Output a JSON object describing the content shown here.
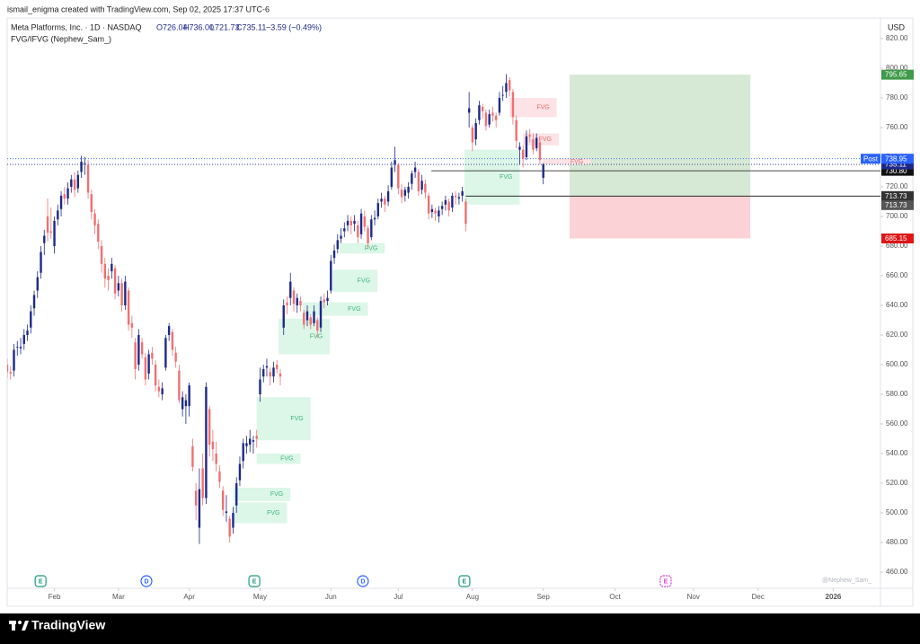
{
  "header": {
    "credit": "ismail_enigma created with TradingView.com, Sep 02, 2025 17:37 UTC-6"
  },
  "legend": {
    "symbol": "Meta Platforms, Inc. · 1D · NASDAQ",
    "open": "O726.04",
    "high": "H736.00",
    "low": "L721.73",
    "close": "C735.11",
    "change": "−3.59 (−0.49%)",
    "indicator": "FVG/IFVG (Nephew_Sam_)"
  },
  "footer": {
    "brand": "TradingView",
    "watermark": "@Nephew_Sam_"
  },
  "chart_data": {
    "type": "candlestick",
    "currency": "USD",
    "up_color": "#1e2a8a",
    "down_color": "#ef7070",
    "xlim": [
      0,
      259
    ],
    "ylim": [
      449.1,
      832.7
    ],
    "yticks": [
      {
        "value": 460,
        "label": "460.00"
      },
      {
        "value": 480,
        "label": "480.00"
      },
      {
        "value": 500,
        "label": "500.00"
      },
      {
        "value": 520,
        "label": "520.00"
      },
      {
        "value": 540,
        "label": "540.00"
      },
      {
        "value": 560,
        "label": "560.00"
      },
      {
        "value": 580,
        "label": "580.00"
      },
      {
        "value": 600,
        "label": "600.00"
      },
      {
        "value": 620,
        "label": "620.00"
      },
      {
        "value": 640,
        "label": "640.00"
      },
      {
        "value": 660,
        "label": "660.00"
      },
      {
        "value": 680,
        "label": "680.00"
      },
      {
        "value": 700,
        "label": "700.00"
      },
      {
        "value": 720,
        "label": "720.00"
      },
      {
        "value": 740,
        "label": "740.00"
      },
      {
        "value": 760,
        "label": "760.00"
      },
      {
        "value": 780,
        "label": "780.00"
      },
      {
        "value": 800,
        "label": "800.00"
      },
      {
        "value": 820,
        "label": "820.00"
      }
    ],
    "xticks": [
      {
        "value": 14,
        "label": "Feb"
      },
      {
        "value": 33,
        "label": "Mar"
      },
      {
        "value": 54,
        "label": "Apr"
      },
      {
        "value": 75,
        "label": "May"
      },
      {
        "value": 96,
        "label": "Jun"
      },
      {
        "value": 116,
        "label": "Jul"
      },
      {
        "value": 138,
        "label": "Aug"
      },
      {
        "value": 159,
        "label": "Sep"
      },
      {
        "value": 180.3,
        "label": "Oct"
      },
      {
        "value": 203.5,
        "label": "Nov"
      },
      {
        "value": 222.7,
        "label": "Dec"
      },
      {
        "value": 245,
        "label": "2026"
      }
    ],
    "ohlc": [
      [
        600,
        604,
        591,
        595
      ],
      [
        595,
        599,
        590,
        594
      ],
      [
        596,
        614,
        592,
        610
      ],
      [
        612,
        616,
        606,
        612
      ],
      [
        611,
        618,
        607,
        612
      ],
      [
        614,
        624,
        610,
        620
      ],
      [
        620,
        627,
        616,
        623
      ],
      [
        625,
        640,
        621,
        636
      ],
      [
        638,
        650,
        633,
        647
      ],
      [
        650,
        663,
        645,
        659
      ],
      [
        662,
        680,
        658,
        676
      ],
      [
        682,
        691,
        674,
        687
      ],
      [
        700,
        712,
        683,
        689
      ],
      [
        690,
        706,
        685,
        689
      ],
      [
        680,
        700,
        675,
        697
      ],
      [
        698,
        708,
        694,
        704
      ],
      [
        705,
        717,
        700,
        714
      ],
      [
        715,
        720,
        708,
        712
      ],
      [
        712,
        723,
        708,
        719
      ],
      [
        720,
        728,
        716,
        725
      ],
      [
        725,
        730,
        713,
        718
      ],
      [
        719,
        731,
        716,
        728
      ],
      [
        730,
        741,
        726,
        737
      ],
      [
        736,
        740,
        728,
        736
      ],
      [
        735,
        738,
        712,
        716
      ],
      [
        715,
        718,
        698,
        703
      ],
      [
        702,
        705,
        688,
        694
      ],
      [
        695,
        698,
        678,
        683
      ],
      [
        680,
        684,
        662,
        668
      ],
      [
        668,
        672,
        652,
        658
      ],
      [
        660,
        665,
        650,
        657
      ],
      [
        663,
        672,
        658,
        668
      ],
      [
        665,
        667,
        644,
        648
      ],
      [
        650,
        660,
        646,
        655
      ],
      [
        655,
        658,
        636,
        640
      ],
      [
        640,
        660,
        637,
        656
      ],
      [
        650,
        652,
        623,
        627
      ],
      [
        628,
        633,
        618,
        625
      ],
      [
        615,
        618,
        590,
        597
      ],
      [
        600,
        624,
        596,
        620
      ],
      [
        615,
        618,
        604,
        607
      ],
      [
        605,
        608,
        586,
        590
      ],
      [
        594,
        610,
        590,
        607
      ],
      [
        608,
        612,
        600,
        604
      ],
      [
        600,
        603,
        582,
        586
      ],
      [
        585,
        590,
        578,
        582
      ],
      [
        580,
        588,
        576,
        584
      ],
      [
        598,
        620,
        596,
        618
      ],
      [
        620,
        628,
        616,
        626
      ],
      [
        622,
        624,
        606,
        610
      ],
      [
        608,
        612,
        598,
        602
      ],
      [
        596,
        600,
        574,
        576
      ],
      [
        570,
        582,
        565,
        578
      ],
      [
        572,
        580,
        560,
        576
      ],
      [
        572,
        588,
        565,
        586
      ],
      [
        545,
        550,
        528,
        531
      ],
      [
        515,
        520,
        495,
        505
      ],
      [
        490,
        530,
        479,
        516
      ],
      [
        530,
        540,
        505,
        510
      ],
      [
        510,
        588,
        506,
        585
      ],
      [
        570,
        572,
        538,
        546
      ],
      [
        548,
        556,
        535,
        543
      ],
      [
        540,
        548,
        528,
        533
      ],
      [
        528,
        532,
        517,
        521
      ],
      [
        515,
        518,
        498,
        502
      ],
      [
        500,
        512,
        494,
        501
      ],
      [
        496,
        498,
        480,
        484
      ],
      [
        490,
        504,
        486,
        500
      ],
      [
        505,
        524,
        500,
        520
      ],
      [
        522,
        538,
        518,
        533
      ],
      [
        535,
        550,
        530,
        547
      ],
      [
        545,
        552,
        540,
        547
      ],
      [
        546,
        556,
        541,
        550
      ],
      [
        548,
        552,
        540,
        549
      ],
      [
        552,
        556,
        544,
        550
      ],
      [
        580,
        598,
        575,
        590
      ],
      [
        592,
        600,
        588,
        597
      ],
      [
        598,
        604,
        592,
        599
      ],
      [
        595,
        598,
        586,
        592
      ],
      [
        592,
        602,
        588,
        598
      ],
      [
        600,
        603,
        594,
        597
      ],
      [
        594,
        597,
        586,
        592
      ],
      [
        625,
        644,
        620,
        640
      ],
      [
        642,
        646,
        634,
        640
      ],
      [
        645,
        662,
        640,
        656
      ],
      [
        650,
        652,
        636,
        641
      ],
      [
        640,
        648,
        635,
        645
      ],
      [
        643,
        646,
        636,
        640
      ],
      [
        635,
        637,
        624,
        627
      ],
      [
        630,
        640,
        626,
        636
      ],
      [
        632,
        634,
        624,
        627
      ],
      [
        628,
        640,
        626,
        636
      ],
      [
        630,
        632,
        618,
        623
      ],
      [
        625,
        646,
        622,
        643
      ],
      [
        644,
        648,
        638,
        642
      ],
      [
        643,
        650,
        640,
        645
      ],
      [
        650,
        674,
        648,
        670
      ],
      [
        672,
        681,
        668,
        677
      ],
      [
        678,
        688,
        675,
        684
      ],
      [
        685,
        692,
        682,
        687
      ],
      [
        690,
        696,
        686,
        692
      ],
      [
        694,
        701,
        690,
        697
      ],
      [
        697,
        700,
        688,
        694
      ],
      [
        695,
        701,
        690,
        697
      ],
      [
        694,
        697,
        682,
        686
      ],
      [
        688,
        705,
        685,
        702
      ],
      [
        700,
        704,
        690,
        693
      ],
      [
        692,
        694,
        678,
        682
      ],
      [
        686,
        701,
        684,
        698
      ],
      [
        698,
        704,
        694,
        699
      ],
      [
        700,
        712,
        698,
        709
      ],
      [
        710,
        716,
        706,
        712
      ],
      [
        712,
        714,
        703,
        708
      ],
      [
        710,
        721,
        707,
        717
      ],
      [
        720,
        737,
        718,
        733
      ],
      [
        735,
        747,
        730,
        738
      ],
      [
        735,
        736,
        715,
        719
      ],
      [
        718,
        722,
        709,
        713
      ],
      [
        714,
        720,
        710,
        718
      ],
      [
        716,
        723,
        712,
        720
      ],
      [
        722,
        731,
        718,
        729
      ],
      [
        730,
        737,
        726,
        733
      ],
      [
        730,
        732,
        714,
        717
      ],
      [
        718,
        728,
        715,
        724
      ],
      [
        722,
        725,
        712,
        716
      ],
      [
        714,
        716,
        698,
        702
      ],
      [
        703,
        708,
        699,
        705
      ],
      [
        704,
        706,
        697,
        702
      ],
      [
        700,
        707,
        696,
        704
      ],
      [
        705,
        710,
        701,
        707
      ],
      [
        708,
        714,
        704,
        711
      ],
      [
        710,
        712,
        700,
        704
      ],
      [
        706,
        716,
        703,
        714
      ],
      [
        714,
        717,
        708,
        713
      ],
      [
        712,
        716,
        708,
        713
      ],
      [
        714,
        720,
        710,
        717
      ],
      [
        710,
        712,
        690,
        695
      ],
      [
        770,
        784,
        760,
        773
      ],
      [
        760,
        762,
        744,
        750
      ],
      [
        752,
        766,
        748,
        763
      ],
      [
        765,
        778,
        762,
        775
      ],
      [
        774,
        776,
        766,
        771
      ],
      [
        770,
        772,
        758,
        761
      ],
      [
        762,
        772,
        760,
        769
      ],
      [
        770,
        774,
        764,
        768
      ],
      [
        768,
        770,
        760,
        765
      ],
      [
        770,
        784,
        768,
        780
      ],
      [
        782,
        788,
        778,
        782
      ],
      [
        784,
        796,
        780,
        790
      ],
      [
        792,
        794,
        781,
        785
      ],
      [
        784,
        786,
        762,
        767
      ],
      [
        765,
        768,
        746,
        751
      ],
      [
        745,
        750,
        735,
        747
      ],
      [
        745,
        748,
        733,
        739
      ],
      [
        740,
        758,
        738,
        754
      ],
      [
        755,
        759,
        750,
        754
      ],
      [
        752,
        756,
        742,
        745
      ],
      [
        746,
        756,
        744,
        753
      ],
      [
        750,
        752,
        735,
        738
      ],
      [
        726.04,
        736,
        721.73,
        735.11
      ]
    ],
    "fvg": [
      {
        "label": "FVG",
        "kind": "bull",
        "x": [
          67,
          84
        ],
        "range": [
          508,
          517
        ]
      },
      {
        "label": "FVG",
        "kind": "bull",
        "x": [
          67,
          83
        ],
        "range": [
          493,
          507
        ]
      },
      {
        "label": "FVG",
        "kind": "bull",
        "x": [
          74,
          87
        ],
        "range": [
          533,
          540
        ]
      },
      {
        "label": "FVG",
        "kind": "bull",
        "x": [
          74,
          90
        ],
        "range": [
          549,
          578
        ]
      },
      {
        "label": "FVG",
        "kind": "bull",
        "x": [
          80.5,
          95.7
        ],
        "range": [
          607,
          631
        ]
      },
      {
        "label": "FVG",
        "kind": "bull",
        "x": [
          87.7,
          107
        ],
        "range": [
          633,
          642
        ]
      },
      {
        "label": "FVG",
        "kind": "bull",
        "x": [
          96.5,
          109.8
        ],
        "range": [
          649,
          664
        ]
      },
      {
        "label": "FVG",
        "kind": "bull",
        "x": [
          98.6,
          112
        ],
        "range": [
          675,
          682
        ]
      },
      {
        "label": "FVG",
        "kind": "bull",
        "x": [
          135.6,
          152
        ],
        "range": [
          708,
          745
        ]
      },
      {
        "label": "FVG",
        "kind": "bear",
        "x": [
          149,
          163
        ],
        "range": [
          767,
          780
        ]
      },
      {
        "label": "FVG",
        "kind": "bear",
        "x": [
          153,
          163.6
        ],
        "range": [
          748,
          756
        ]
      },
      {
        "label": "FVG",
        "kind": "bear",
        "x": [
          158.8,
          173
        ],
        "range": [
          735,
          739
        ]
      }
    ],
    "fvg_colors": {
      "bull": {
        "fill": "#dcf6e8",
        "text": "#3cb878"
      },
      "bear": {
        "fill": "#fde3e5",
        "text": "#e26d6d"
      }
    },
    "position": {
      "x": [
        166.8,
        220.4
      ],
      "target": 795.65,
      "entry": 713.73,
      "stop": 685.15,
      "profit_color": "#d6e9d5",
      "loss_color": "#fbd2d5",
      "target_color": "#3f9a4a",
      "entry_color": "#333333",
      "stop_color": "#e01515"
    },
    "price_lines": [
      {
        "value": 730.8,
        "label": "730.80",
        "from": 125.8,
        "color": "#111111",
        "style": "solid"
      },
      {
        "value": 713.73,
        "from": 136,
        "color": "#111111",
        "style": "solid"
      }
    ],
    "last_price": {
      "value": 735.11,
      "color": "#1e2a8a"
    },
    "post_price": {
      "tag": "Post",
      "value": 738.95,
      "color": "#2962ff"
    },
    "events": [
      {
        "label": "E",
        "x": 9.9,
        "color": "#1a9c7c"
      },
      {
        "label": "D",
        "x": 41.3,
        "color": "#2962ff"
      },
      {
        "label": "E",
        "x": 73.3,
        "color": "#1a9c7c"
      },
      {
        "label": "D",
        "x": 105.5,
        "color": "#2962ff"
      },
      {
        "label": "E",
        "x": 135.6,
        "color": "#1a9c7c"
      },
      {
        "label": "E",
        "x": 195.3,
        "color": "#d23fd1"
      }
    ]
  }
}
